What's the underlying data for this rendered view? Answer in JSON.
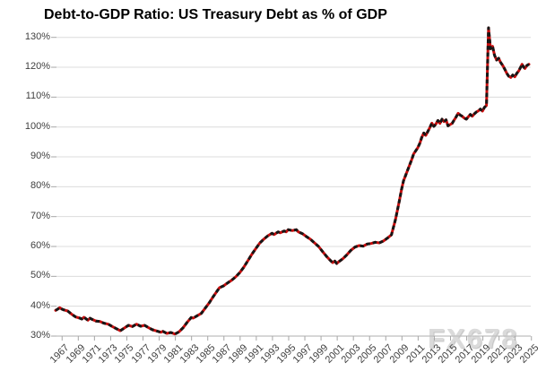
{
  "title": "Debt-to-GDP Ratio: US Treasury Debt as % of GDP",
  "watermark": "FX678",
  "colors": {
    "line_red": "#c80d0d",
    "dash_black": "#161616",
    "gridline": "#dcdcdc",
    "axis_line": "#bfbfbf",
    "tick_mark": "#a6a6a6",
    "tick_label": "#3f3f3f",
    "title_text": "#000000",
    "watermark_text": "#dadada",
    "background": "#ffffff"
  },
  "chart_data": {
    "type": "line",
    "title": "Debt-to-GDP Ratio: US Treasury Debt as % of GDP",
    "xlabel": "",
    "ylabel": "",
    "x_range": [
      1966.75,
      2025.25
    ],
    "ylim": [
      30,
      130
    ],
    "grid": "horizontal-only",
    "legend": "none",
    "y_ticks": [
      30,
      40,
      50,
      60,
      70,
      80,
      90,
      100,
      110,
      120,
      130
    ],
    "y_tick_suffix": "%",
    "x_ticks": [
      1967,
      1969,
      1971,
      1973,
      1975,
      1977,
      1979,
      1981,
      1983,
      1985,
      1987,
      1989,
      1991,
      1993,
      1995,
      1997,
      1999,
      2001,
      2003,
      2005,
      2007,
      2009,
      2011,
      2013,
      2015,
      2017,
      2019,
      2021,
      2023,
      2025
    ],
    "series": [
      {
        "name": "US Treasury debt as % of GDP",
        "style": "red line with black dashed overlay",
        "points": [
          [
            1966.75,
            38.6
          ],
          [
            1967.0,
            39.0
          ],
          [
            1967.25,
            39.5
          ],
          [
            1967.5,
            39.1
          ],
          [
            1967.75,
            38.8
          ],
          [
            1968.25,
            38.4
          ],
          [
            1968.75,
            37.3
          ],
          [
            1969.25,
            36.4
          ],
          [
            1969.75,
            36.0
          ],
          [
            1970.0,
            35.7
          ],
          [
            1970.25,
            36.3
          ],
          [
            1970.75,
            35.3
          ],
          [
            1971.0,
            36.0
          ],
          [
            1971.25,
            35.6
          ],
          [
            1971.75,
            35.0
          ],
          [
            1972.25,
            34.9
          ],
          [
            1972.75,
            34.3
          ],
          [
            1973.25,
            34.0
          ],
          [
            1973.75,
            33.2
          ],
          [
            1974.25,
            32.5
          ],
          [
            1974.75,
            31.8
          ],
          [
            1975.25,
            32.7
          ],
          [
            1975.75,
            33.6
          ],
          [
            1976.25,
            33.2
          ],
          [
            1976.75,
            34.0
          ],
          [
            1977.25,
            33.3
          ],
          [
            1977.75,
            33.6
          ],
          [
            1978.25,
            32.8
          ],
          [
            1978.75,
            32.1
          ],
          [
            1979.25,
            31.7
          ],
          [
            1979.75,
            31.3
          ],
          [
            1980.0,
            31.6
          ],
          [
            1980.5,
            30.9
          ],
          [
            1981.0,
            31.2
          ],
          [
            1981.5,
            30.7
          ],
          [
            1982.0,
            31.4
          ],
          [
            1982.5,
            32.8
          ],
          [
            1983.0,
            34.6
          ],
          [
            1983.5,
            36.2
          ],
          [
            1983.75,
            36.0
          ],
          [
            1984.25,
            36.8
          ],
          [
            1984.75,
            37.6
          ],
          [
            1985.25,
            39.4
          ],
          [
            1985.75,
            41.2
          ],
          [
            1986.25,
            43.3
          ],
          [
            1986.75,
            45.2
          ],
          [
            1987.0,
            46.2
          ],
          [
            1987.5,
            46.8
          ],
          [
            1988.0,
            47.8
          ],
          [
            1988.5,
            48.7
          ],
          [
            1989.0,
            49.8
          ],
          [
            1989.5,
            51.2
          ],
          [
            1990.0,
            53.0
          ],
          [
            1990.5,
            55.2
          ],
          [
            1991.0,
            57.4
          ],
          [
            1991.5,
            59.3
          ],
          [
            1992.0,
            61.2
          ],
          [
            1992.5,
            62.5
          ],
          [
            1993.0,
            63.6
          ],
          [
            1993.5,
            64.4
          ],
          [
            1993.75,
            64.0
          ],
          [
            1994.25,
            64.9
          ],
          [
            1994.5,
            64.6
          ],
          [
            1995.0,
            65.2
          ],
          [
            1995.25,
            64.9
          ],
          [
            1995.5,
            65.6
          ],
          [
            1996.0,
            65.3
          ],
          [
            1996.5,
            65.6
          ],
          [
            1996.75,
            64.9
          ],
          [
            1997.25,
            64.3
          ],
          [
            1997.75,
            63.3
          ],
          [
            1998.25,
            62.4
          ],
          [
            1998.75,
            61.2
          ],
          [
            1999.25,
            60.0
          ],
          [
            1999.75,
            58.3
          ],
          [
            2000.25,
            56.6
          ],
          [
            2000.75,
            55.2
          ],
          [
            2001.0,
            54.6
          ],
          [
            2001.25,
            55.1
          ],
          [
            2001.5,
            54.3
          ],
          [
            2001.75,
            54.9
          ],
          [
            2002.25,
            55.9
          ],
          [
            2002.75,
            57.2
          ],
          [
            2003.25,
            58.7
          ],
          [
            2003.75,
            59.8
          ],
          [
            2004.25,
            60.3
          ],
          [
            2004.75,
            60.1
          ],
          [
            2005.25,
            60.8
          ],
          [
            2005.75,
            61.0
          ],
          [
            2006.25,
            61.4
          ],
          [
            2006.75,
            61.2
          ],
          [
            2007.25,
            61.8
          ],
          [
            2007.75,
            62.8
          ],
          [
            2008.25,
            63.9
          ],
          [
            2008.75,
            69.0
          ],
          [
            2009.25,
            75.5
          ],
          [
            2009.5,
            79.0
          ],
          [
            2009.75,
            82.0
          ],
          [
            2010.25,
            85.5
          ],
          [
            2010.75,
            89.0
          ],
          [
            2011.0,
            91.0
          ],
          [
            2011.5,
            93.0
          ],
          [
            2011.75,
            94.5
          ],
          [
            2012.0,
            96.5
          ],
          [
            2012.25,
            98.0
          ],
          [
            2012.5,
            97.2
          ],
          [
            2012.75,
            98.5
          ],
          [
            2013.0,
            99.8
          ],
          [
            2013.25,
            101.3
          ],
          [
            2013.5,
            100.2
          ],
          [
            2013.75,
            101.0
          ],
          [
            2014.0,
            102.2
          ],
          [
            2014.25,
            101.2
          ],
          [
            2014.5,
            102.6
          ],
          [
            2014.75,
            101.8
          ],
          [
            2015.0,
            102.4
          ],
          [
            2015.25,
            100.4
          ],
          [
            2015.5,
            100.8
          ],
          [
            2015.75,
            101.2
          ],
          [
            2016.0,
            102.3
          ],
          [
            2016.25,
            103.4
          ],
          [
            2016.5,
            104.6
          ],
          [
            2016.75,
            104.0
          ],
          [
            2017.0,
            103.6
          ],
          [
            2017.25,
            103.0
          ],
          [
            2017.5,
            102.6
          ],
          [
            2017.75,
            103.4
          ],
          [
            2018.0,
            104.2
          ],
          [
            2018.25,
            103.6
          ],
          [
            2018.5,
            104.4
          ],
          [
            2018.75,
            105.0
          ],
          [
            2019.0,
            105.4
          ],
          [
            2019.25,
            106.0
          ],
          [
            2019.5,
            105.3
          ],
          [
            2019.75,
            106.6
          ],
          [
            2020.0,
            107.2
          ],
          [
            2020.25,
            133.2
          ],
          [
            2020.5,
            126.2
          ],
          [
            2020.75,
            127.0
          ],
          [
            2021.0,
            124.0
          ],
          [
            2021.25,
            122.4
          ],
          [
            2021.5,
            123.0
          ],
          [
            2021.75,
            121.6
          ],
          [
            2022.0,
            120.6
          ],
          [
            2022.25,
            119.4
          ],
          [
            2022.5,
            118.0
          ],
          [
            2022.75,
            117.0
          ],
          [
            2023.0,
            116.6
          ],
          [
            2023.25,
            117.4
          ],
          [
            2023.5,
            116.8
          ],
          [
            2023.75,
            118.0
          ],
          [
            2024.0,
            118.8
          ],
          [
            2024.25,
            120.2
          ],
          [
            2024.4,
            121.0
          ],
          [
            2024.6,
            120.0
          ],
          [
            2024.75,
            119.6
          ],
          [
            2025.0,
            120.6
          ],
          [
            2025.25,
            121.0
          ]
        ]
      }
    ]
  }
}
